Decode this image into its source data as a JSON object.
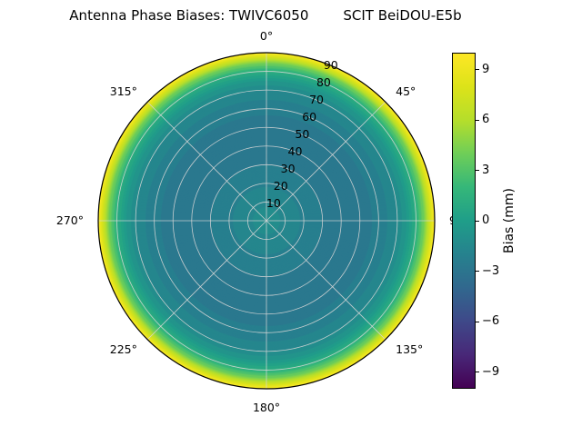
{
  "figure": {
    "title_left": "Antenna Phase Biases: TWIVC6050",
    "title_right": "SCIT BeiDOU-E5b"
  },
  "chart_data": {
    "type": "heatmap",
    "projection": "polar",
    "title": "Antenna Phase Biases: TWIVC6050   SCIT BeiDOU-E5b",
    "description": "Polar filled-contour map of antenna phase bias (mm) versus zenith angle (radius, 0-90) and azimuth (angle). Pattern is azimuthally symmetric: steel-blue negative biases in the interior rising sharply to yellow positive biases at the outer edge.",
    "radial_axis_max": 90,
    "radial_ticks": [
      10,
      20,
      30,
      40,
      50,
      60,
      70,
      80,
      90
    ],
    "radial_label_angle_deg": 22.5,
    "angular_ticks": [
      {
        "label": "0°",
        "deg": 0
      },
      {
        "label": "45°",
        "deg": 45
      },
      {
        "label": "90",
        "deg": 90
      },
      {
        "label": "135°",
        "deg": 135
      },
      {
        "label": "180°",
        "deg": 180
      },
      {
        "label": "225°",
        "deg": 225
      },
      {
        "label": "270°",
        "deg": 270
      },
      {
        "label": "315°",
        "deg": 315
      }
    ],
    "profile": {
      "radius_deg": [
        0,
        10,
        20,
        30,
        40,
        50,
        60,
        70,
        75,
        80,
        83,
        86,
        88,
        90
      ],
      "bias_mm": [
        -1.2,
        -1.6,
        -2.1,
        -2.5,
        -2.7,
        -2.7,
        -2.4,
        -1.6,
        -0.5,
        1.2,
        3.0,
        5.5,
        7.5,
        9.8
      ]
    },
    "contour_level_step_mm": 0.5,
    "value_range": [
      -10,
      10
    ],
    "colormap": {
      "name": "viridis",
      "stops": [
        [
          0.0,
          "#440154"
        ],
        [
          0.1,
          "#482878"
        ],
        [
          0.2,
          "#3e4989"
        ],
        [
          0.3,
          "#31688e"
        ],
        [
          0.4,
          "#26828e"
        ],
        [
          0.5,
          "#1f9e89"
        ],
        [
          0.6,
          "#35b779"
        ],
        [
          0.7,
          "#6ece58"
        ],
        [
          0.8,
          "#b5de2b"
        ],
        [
          0.9,
          "#dce319"
        ],
        [
          1.0,
          "#fde725"
        ]
      ]
    },
    "colorbar": {
      "label": "Bias (mm)",
      "tick_values": [
        9,
        6,
        3,
        0,
        -3,
        -6,
        -9
      ],
      "tick_labels": [
        "9",
        "6",
        "3",
        "0",
        "−3",
        "−6",
        "−9"
      ]
    },
    "grid": {
      "color": "#d6d6d6",
      "outline_color": "#000000"
    }
  }
}
